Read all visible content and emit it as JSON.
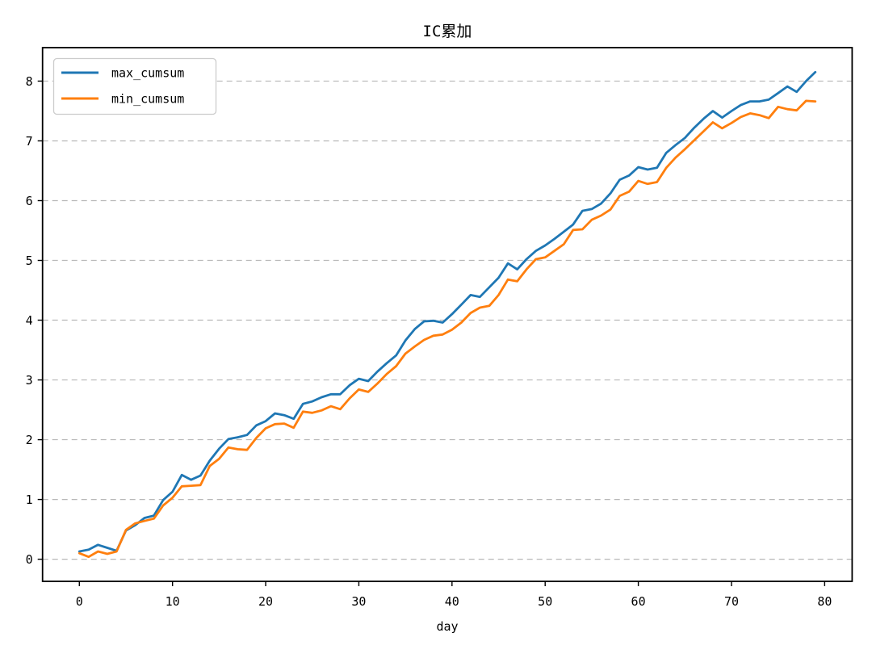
{
  "chart_data": {
    "type": "line",
    "title": "IC累加",
    "xlabel": "day",
    "ylabel": "",
    "legend_position": "upper-left",
    "grid": "horizontal-dashed",
    "grid_color": "#b8b8b8",
    "background": "#ffffff",
    "xlim": [
      -3.95,
      82.95
    ],
    "ylim": [
      -0.37,
      8.56
    ],
    "xticks": [
      0,
      10,
      20,
      30,
      40,
      50,
      60,
      70,
      80
    ],
    "yticks": [
      0,
      1,
      2,
      3,
      4,
      5,
      6,
      7,
      8
    ],
    "x": [
      0,
      1,
      2,
      3,
      4,
      5,
      6,
      7,
      8,
      9,
      10,
      11,
      12,
      13,
      14,
      15,
      16,
      17,
      18,
      19,
      20,
      21,
      22,
      23,
      24,
      25,
      26,
      27,
      28,
      29,
      30,
      31,
      32,
      33,
      34,
      35,
      36,
      37,
      38,
      39,
      40,
      41,
      42,
      43,
      44,
      45,
      46,
      47,
      48,
      49,
      50,
      51,
      52,
      53,
      54,
      55,
      56,
      57,
      58,
      59,
      60,
      61,
      62,
      63,
      64,
      65,
      66,
      67,
      68,
      69,
      70,
      71,
      72,
      73,
      74,
      75,
      76,
      77,
      78,
      79
    ],
    "series": [
      {
        "name": "max_cumsum",
        "color": "#1f77b4",
        "values": [
          0.13,
          0.16,
          0.24,
          0.19,
          0.14,
          0.48,
          0.57,
          0.69,
          0.73,
          0.99,
          1.13,
          1.41,
          1.33,
          1.4,
          1.65,
          1.85,
          2.01,
          2.04,
          2.08,
          2.24,
          2.31,
          2.44,
          2.41,
          2.35,
          2.6,
          2.64,
          2.71,
          2.76,
          2.76,
          2.91,
          3.02,
          2.98,
          3.14,
          3.28,
          3.41,
          3.66,
          3.85,
          3.98,
          3.99,
          3.96,
          4.1,
          4.26,
          4.42,
          4.39,
          4.55,
          4.71,
          4.95,
          4.85,
          5.02,
          5.16,
          5.25,
          5.36,
          5.48,
          5.6,
          5.83,
          5.86,
          5.95,
          6.12,
          6.35,
          6.42,
          6.56,
          6.52,
          6.55,
          6.8,
          6.93,
          7.05,
          7.22,
          7.37,
          7.5,
          7.39,
          7.5,
          7.6,
          7.66,
          7.66,
          7.69,
          7.8,
          7.91,
          7.82,
          8.0,
          8.15
        ]
      },
      {
        "name": "min_cumsum",
        "color": "#ff7f0e",
        "values": [
          0.1,
          0.04,
          0.13,
          0.09,
          0.13,
          0.49,
          0.6,
          0.64,
          0.68,
          0.9,
          1.03,
          1.22,
          1.23,
          1.24,
          1.56,
          1.68,
          1.87,
          1.84,
          1.83,
          2.03,
          2.19,
          2.26,
          2.27,
          2.2,
          2.47,
          2.45,
          2.49,
          2.56,
          2.51,
          2.69,
          2.84,
          2.8,
          2.94,
          3.1,
          3.23,
          3.44,
          3.56,
          3.67,
          3.74,
          3.76,
          3.84,
          3.96,
          4.12,
          4.21,
          4.24,
          4.42,
          4.68,
          4.65,
          4.85,
          5.02,
          5.05,
          5.16,
          5.27,
          5.51,
          5.52,
          5.68,
          5.75,
          5.85,
          6.08,
          6.15,
          6.33,
          6.28,
          6.31,
          6.55,
          6.72,
          6.86,
          7.01,
          7.16,
          7.31,
          7.21,
          7.3,
          7.4,
          7.46,
          7.43,
          7.38,
          7.57,
          7.53,
          7.51,
          7.67,
          7.66
        ]
      }
    ]
  }
}
